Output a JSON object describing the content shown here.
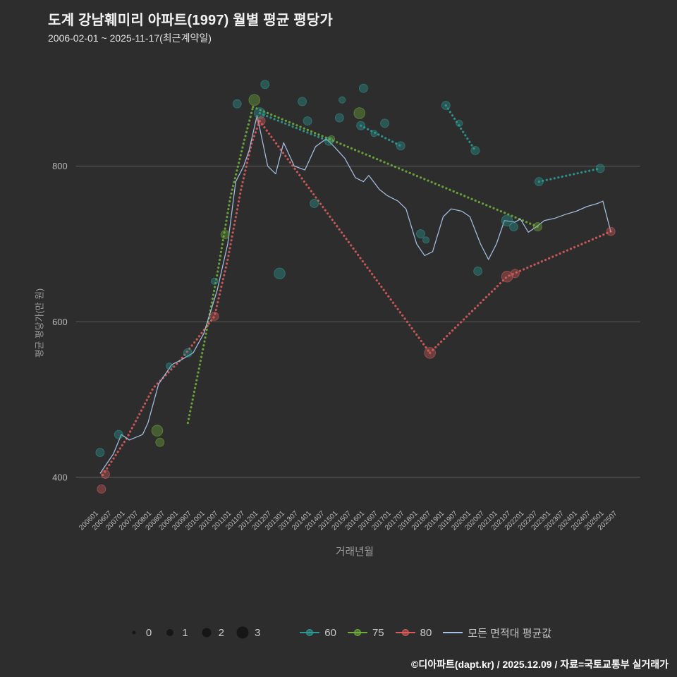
{
  "footer": {
    "attribution": "©디아파트(dapt.kr) / 2025.12.09 / 자료=국토교통부 실거래가"
  },
  "colors": {
    "background": "#2d2d2d",
    "title": "#f2f2f2",
    "subtitle": "#e4e4e4",
    "axis_text": "#b9b9b9",
    "axis_title": "#9b9b9b",
    "grid": "#5f5f5f",
    "teal": "#2d9b94",
    "green": "#70ad3c",
    "red": "#d85c5c",
    "avg_line": "#a9c3e6",
    "legend_text": "#c9c9c9",
    "legend_bubble": "#161616",
    "footer_text": "#ffffff"
  },
  "chart_data": {
    "type": "scatter",
    "title": "도계 강남훼미리 아파트(1997) 월별 평균 평당가",
    "subtitle": "2006-02-01 ~ 2025-11-17(최근계약일)",
    "xlabel": "거래년월",
    "ylabel": "평균 평당가(만 원)",
    "yticks": [
      400,
      600,
      800
    ],
    "ylim": [
      350,
      930
    ],
    "x_range": [
      2006.0,
      2025.5
    ],
    "grid": "horizontal-only",
    "legend_position": "bottom",
    "xtick_labels": [
      "200601",
      "200607",
      "200701",
      "200707",
      "200801",
      "200807",
      "200901",
      "200907",
      "201001",
      "201007",
      "201101",
      "201107",
      "201201",
      "201207",
      "201301",
      "201307",
      "201401",
      "201407",
      "201501",
      "201507",
      "201601",
      "201607",
      "201701",
      "201707",
      "201801",
      "201807",
      "201901",
      "201907",
      "202001",
      "202007",
      "202101",
      "202107",
      "202201",
      "202207",
      "202301",
      "202307",
      "202401",
      "202407",
      "202501",
      "202507"
    ],
    "trend_lines": [
      {
        "name": "60",
        "color_key": "teal",
        "segments": [
          [
            [
              2012.3,
              868
            ],
            [
              2014.9,
              832
            ]
          ],
          [
            [
              2016.1,
              852
            ],
            [
              2017.6,
              826
            ]
          ],
          [
            [
              2019.3,
              878
            ],
            [
              2020.4,
              820
            ]
          ],
          [
            [
              2022.8,
              780
            ],
            [
              2025.1,
              797
            ]
          ]
        ]
      },
      {
        "name": "75",
        "color_key": "green",
        "segments": [
          [
            [
              2009.6,
              470
            ],
            [
              2010.2,
              570
            ],
            [
              2010.7,
              660
            ],
            [
              2011.2,
              760
            ],
            [
              2011.7,
              830
            ],
            [
              2012.05,
              876
            ]
          ],
          [
            [
              2012.05,
              876
            ],
            [
              2022.75,
              722
            ]
          ]
        ]
      },
      {
        "name": "80",
        "color_key": "red",
        "segments": [
          [
            [
              2006.4,
              403
            ],
            [
              2007.3,
              450
            ],
            [
              2008.3,
              515
            ],
            [
              2009.3,
              550
            ],
            [
              2010.0,
              580
            ],
            [
              2010.6,
              607
            ],
            [
              2011.1,
              680
            ],
            [
              2011.6,
              770
            ],
            [
              2012.0,
              830
            ],
            [
              2012.3,
              858
            ]
          ],
          [
            [
              2012.3,
              858
            ],
            [
              2018.7,
              560
            ]
          ],
          [
            [
              2018.7,
              560
            ],
            [
              2021.6,
              658
            ],
            [
              2025.5,
              716
            ]
          ]
        ]
      }
    ],
    "avg_line": {
      "name": "모든 면적대 평균값",
      "color_key": "avg_line",
      "points": [
        [
          2006.3,
          405
        ],
        [
          2006.8,
          430
        ],
        [
          2007.1,
          455
        ],
        [
          2007.4,
          448
        ],
        [
          2007.9,
          455
        ],
        [
          2008.1,
          470
        ],
        [
          2008.5,
          520
        ],
        [
          2009.0,
          545
        ],
        [
          2009.3,
          550
        ],
        [
          2009.8,
          560
        ],
        [
          2010.2,
          585
        ],
        [
          2010.7,
          640
        ],
        [
          2011.1,
          700
        ],
        [
          2011.4,
          780
        ],
        [
          2011.7,
          800
        ],
        [
          2011.9,
          820
        ],
        [
          2012.2,
          865
        ],
        [
          2012.6,
          800
        ],
        [
          2012.9,
          790
        ],
        [
          2013.2,
          830
        ],
        [
          2013.6,
          800
        ],
        [
          2014.0,
          795
        ],
        [
          2014.4,
          825
        ],
        [
          2014.8,
          835
        ],
        [
          2015.1,
          825
        ],
        [
          2015.5,
          810
        ],
        [
          2015.9,
          785
        ],
        [
          2016.2,
          780
        ],
        [
          2016.4,
          788
        ],
        [
          2016.8,
          770
        ],
        [
          2017.1,
          762
        ],
        [
          2017.5,
          755
        ],
        [
          2017.8,
          745
        ],
        [
          2018.2,
          700
        ],
        [
          2018.5,
          685
        ],
        [
          2018.8,
          690
        ],
        [
          2019.2,
          735
        ],
        [
          2019.5,
          745
        ],
        [
          2019.9,
          742
        ],
        [
          2020.2,
          735
        ],
        [
          2020.6,
          700
        ],
        [
          2020.9,
          680
        ],
        [
          2021.2,
          700
        ],
        [
          2021.5,
          730
        ],
        [
          2021.9,
          728
        ],
        [
          2022.1,
          732
        ],
        [
          2022.4,
          715
        ],
        [
          2022.7,
          722
        ],
        [
          2023.0,
          730
        ],
        [
          2023.4,
          733
        ],
        [
          2023.8,
          738
        ],
        [
          2024.2,
          742
        ],
        [
          2024.6,
          748
        ],
        [
          2025.0,
          752
        ],
        [
          2025.2,
          755
        ],
        [
          2025.5,
          715
        ]
      ]
    },
    "scatter": [
      {
        "s": "60",
        "t": 2012.5,
        "v": 905,
        "z": 2
      },
      {
        "s": "60",
        "t": 2016.2,
        "v": 900,
        "z": 2
      },
      {
        "s": "60",
        "t": 2011.45,
        "v": 880,
        "z": 2
      },
      {
        "s": "60",
        "t": 2012.3,
        "v": 868,
        "z": 3
      },
      {
        "s": "60",
        "t": 2013.9,
        "v": 883,
        "z": 2
      },
      {
        "s": "60",
        "t": 2014.1,
        "v": 858,
        "z": 2
      },
      {
        "s": "60",
        "t": 2014.9,
        "v": 832,
        "z": 2
      },
      {
        "s": "60",
        "t": 2015.4,
        "v": 885,
        "z": 1
      },
      {
        "s": "60",
        "t": 2015.3,
        "v": 862,
        "z": 2
      },
      {
        "s": "60",
        "t": 2016.1,
        "v": 852,
        "z": 2
      },
      {
        "s": "60",
        "t": 2016.6,
        "v": 842,
        "z": 1
      },
      {
        "s": "60",
        "t": 2017.0,
        "v": 855,
        "z": 2
      },
      {
        "s": "60",
        "t": 2017.6,
        "v": 826,
        "z": 2
      },
      {
        "s": "60",
        "t": 2019.3,
        "v": 878,
        "z": 2
      },
      {
        "s": "60",
        "t": 2019.8,
        "v": 855,
        "z": 1
      },
      {
        "s": "60",
        "t": 2020.4,
        "v": 820,
        "z": 2
      },
      {
        "s": "60",
        "t": 2022.8,
        "v": 780,
        "z": 2
      },
      {
        "s": "60",
        "t": 2025.1,
        "v": 797,
        "z": 2
      },
      {
        "s": "60",
        "t": 2013.05,
        "v": 662,
        "z": 3
      },
      {
        "s": "60",
        "t": 2014.35,
        "v": 752,
        "z": 2
      },
      {
        "s": "60",
        "t": 2018.35,
        "v": 713,
        "z": 2
      },
      {
        "s": "60",
        "t": 2018.55,
        "v": 705,
        "z": 1
      },
      {
        "s": "60",
        "t": 2020.5,
        "v": 665,
        "z": 2
      },
      {
        "s": "60",
        "t": 2021.6,
        "v": 730,
        "z": 3
      },
      {
        "s": "60",
        "t": 2021.85,
        "v": 722,
        "z": 2
      },
      {
        "s": "60",
        "t": 2009.6,
        "v": 560,
        "z": 2
      },
      {
        "s": "60",
        "t": 2008.9,
        "v": 543,
        "z": 1
      },
      {
        "s": "60",
        "t": 2007.0,
        "v": 455,
        "z": 2
      },
      {
        "s": "60",
        "t": 2006.3,
        "v": 432,
        "z": 2
      },
      {
        "s": "60",
        "t": 2010.6,
        "v": 652,
        "z": 1
      },
      {
        "s": "75",
        "t": 2012.1,
        "v": 885,
        "z": 3
      },
      {
        "s": "75",
        "t": 2016.05,
        "v": 868,
        "z": 3
      },
      {
        "s": "75",
        "t": 2008.45,
        "v": 460,
        "z": 3
      },
      {
        "s": "75",
        "t": 2008.55,
        "v": 445,
        "z": 2
      },
      {
        "s": "75",
        "t": 2011.0,
        "v": 712,
        "z": 2
      },
      {
        "s": "75",
        "t": 2022.75,
        "v": 722,
        "z": 2
      },
      {
        "s": "75",
        "t": 2015.0,
        "v": 835,
        "z": 1
      },
      {
        "s": "80",
        "t": 2006.35,
        "v": 385,
        "z": 2
      },
      {
        "s": "80",
        "t": 2006.5,
        "v": 404,
        "z": 2
      },
      {
        "s": "80",
        "t": 2010.6,
        "v": 607,
        "z": 2
      },
      {
        "s": "80",
        "t": 2012.35,
        "v": 858,
        "z": 2
      },
      {
        "s": "80",
        "t": 2018.7,
        "v": 560,
        "z": 3
      },
      {
        "s": "80",
        "t": 2021.6,
        "v": 658,
        "z": 3
      },
      {
        "s": "80",
        "t": 2021.9,
        "v": 662,
        "z": 2
      },
      {
        "s": "80",
        "t": 2025.5,
        "v": 716,
        "z": 2
      }
    ],
    "legend": {
      "sizes": [
        "0",
        "1",
        "2",
        "3"
      ],
      "series": [
        {
          "label": "60",
          "color_key": "teal",
          "marker": "line-dot"
        },
        {
          "label": "75",
          "color_key": "green",
          "marker": "line-dot"
        },
        {
          "label": "80",
          "color_key": "red",
          "marker": "line-dot"
        },
        {
          "label": "모든 면적대 평균값",
          "color_key": "avg_line",
          "marker": "line"
        }
      ]
    }
  }
}
